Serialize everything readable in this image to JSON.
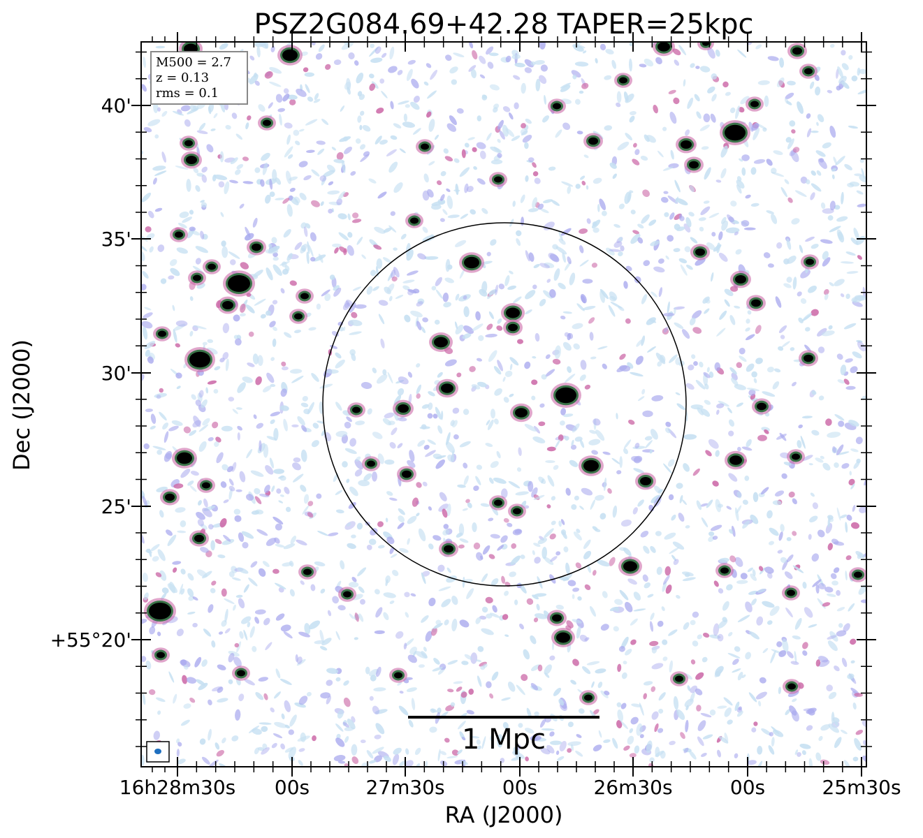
{
  "title": "PSZ2G084.69+42.28 TAPER=25kpc",
  "xlabel": "RA (J2000)",
  "ylabel": "Dec (J2000)",
  "x_ticks": [
    "16h28m30s",
    "00s",
    "27m30s",
    "00s",
    "26m30s",
    "00s",
    "25m30s"
  ],
  "y_ticks": [
    "40'",
    "35'",
    "30'",
    "25'",
    "+55°20'"
  ],
  "info_box": {
    "m500": "M500 = 2.7",
    "z": "z = 0.13",
    "rms": "rms = 0.1"
  },
  "scale_bar_label": "1 Mpc",
  "colors": {
    "noise_light": "#c6e0f2",
    "noise_mid": "#a9a9ee",
    "noise_pink": "#cc6aa8",
    "source_core": "#000000",
    "source_halo": "#1d6b33",
    "beam": "#1f6fbf"
  }
}
